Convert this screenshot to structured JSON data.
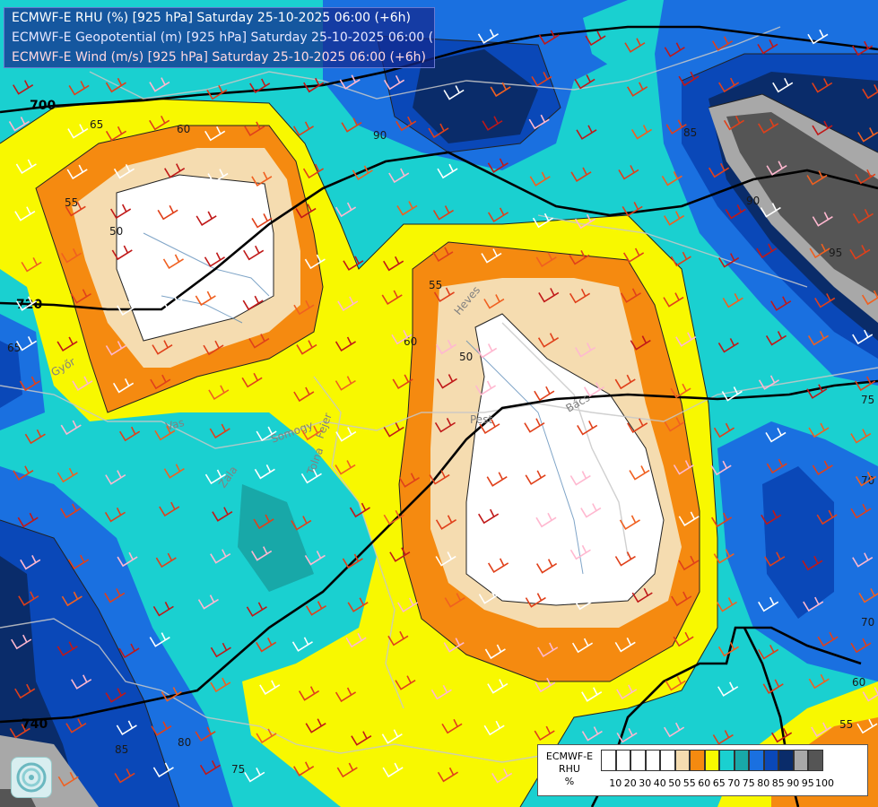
{
  "header": {
    "line1": "ECMWF-E RHU (%) [925 hPa] Saturday 25-10-2025 06:00 (+6h)",
    "line2": "ECMWF-E Geopotential (m) [925 hPa] Saturday 25-10-2025 06:00 (+6h)",
    "line3": "ECMWF-E Wind (m/s) [925 hPa] Saturday 25-10-2025 06:00 (+6h)"
  },
  "legend": {
    "title_line1": "ECMWF-E",
    "title_line2": "RHU",
    "title_line3": "%",
    "ticks": [
      "10",
      "20",
      "30",
      "40",
      "50",
      "55",
      "60",
      "65",
      "70",
      "75",
      "80",
      "85",
      "90",
      "95",
      "100"
    ],
    "colors": [
      "#ffffff",
      "#ffffff",
      "#ffffff",
      "#ffffff",
      "#ffffff",
      "#f5dcb0",
      "#f58a10",
      "#f8f800",
      "#1ad0d0",
      "#18a8a8",
      "#1a70e0",
      "#0a48b8",
      "#0a2c6a",
      "#a8a8a8",
      "#555555"
    ]
  },
  "colors": {
    "rh_50": "#ffffff",
    "rh_55": "#f5dcb0",
    "rh_60": "#f58a10",
    "rh_65": "#f8f800",
    "rh_70": "#1ad0d0",
    "rh_75": "#18a8a8",
    "rh_80": "#1a70e0",
    "rh_85": "#0a48b8",
    "rh_90": "#0a2c6a",
    "rh_95": "#a8a8a8",
    "rh_100": "#555555"
  },
  "geopotential_labels": [
    "700",
    "720",
    "740"
  ],
  "rh_contour_labels": [
    "65",
    "60",
    "55",
    "50",
    "50",
    "55",
    "90",
    "60",
    "65",
    "85",
    "90",
    "95",
    "75",
    "70",
    "70",
    "60",
    "55",
    "80",
    "85",
    "75"
  ],
  "region_labels": [
    "Heves",
    "Vas",
    "Somogy",
    "Zala",
    "Tolna",
    "Fejer",
    "Pest",
    "Bács",
    "Győr"
  ],
  "logo_icon": "ecmwf-logo-icon"
}
